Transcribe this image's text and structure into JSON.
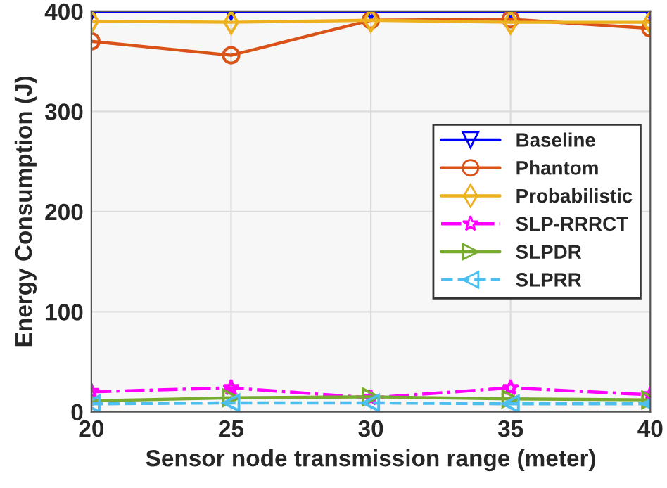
{
  "chart_data": {
    "type": "line",
    "xlabel": "Sensor node transmission range (meter)",
    "ylabel": "Energy Consumption (J)",
    "x": [
      20,
      25,
      30,
      35,
      40
    ],
    "xlim": [
      20,
      40
    ],
    "xticks": [
      20,
      25,
      30,
      35,
      40
    ],
    "ylim": [
      0,
      400
    ],
    "yticks": [
      0,
      100,
      200,
      300,
      400
    ],
    "grid": true,
    "legend": "center right",
    "series": [
      {
        "name": "Baseline",
        "color": "#0000ff",
        "marker": "triangle_down",
        "line_style": "solid",
        "values": [
          400,
          400,
          400,
          400,
          400
        ]
      },
      {
        "name": "Phantom",
        "color": "#d95319",
        "marker": "circle",
        "line_style": "solid",
        "values": [
          370,
          356,
          391,
          392,
          383
        ]
      },
      {
        "name": "Probabilistic",
        "color": "#edb120",
        "marker": "diamond",
        "line_style": "solid",
        "values": [
          390,
          389,
          391,
          389,
          389
        ]
      },
      {
        "name": "SLP-RRRCT",
        "color": "#ff00ff",
        "marker": "star",
        "line_style": "dashdot",
        "values": [
          20,
          24,
          14,
          24,
          17
        ]
      },
      {
        "name": "SLPDR",
        "color": "#77ac30",
        "marker": "triangle_right",
        "line_style": "solid",
        "values": [
          11,
          14,
          15,
          13,
          12
        ]
      },
      {
        "name": "SLPRR",
        "color": "#4dbeee",
        "marker": "triangle_left",
        "line_style": "dashed",
        "values": [
          8,
          9,
          9,
          8,
          8
        ]
      }
    ]
  }
}
